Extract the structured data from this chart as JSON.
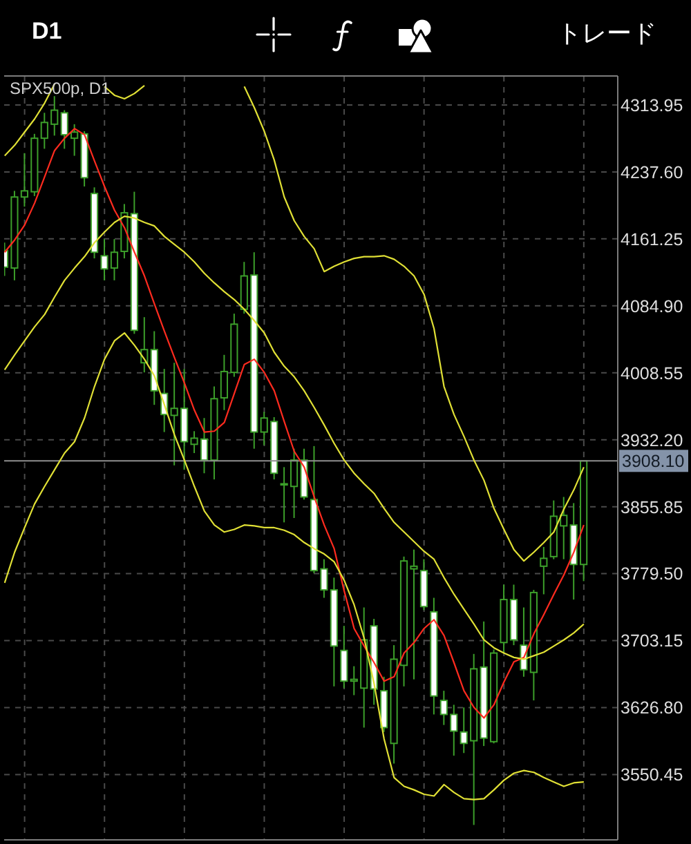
{
  "chart_data": {
    "type": "candlestick",
    "title": "SPX500p, D1",
    "annotations": [
      "D1",
      "トレード"
    ],
    "categories": [
      null,
      null,
      null,
      null,
      null,
      null,
      null,
      null,
      null,
      null,
      null,
      null,
      null,
      null,
      null,
      null,
      null,
      null,
      null,
      null,
      null,
      null,
      null,
      null,
      null,
      null,
      null,
      null,
      null,
      null,
      null,
      null,
      null,
      null,
      null,
      null,
      null,
      null,
      null,
      null,
      null,
      null,
      null,
      null,
      null,
      null,
      null,
      null,
      null,
      null,
      null,
      null,
      null,
      null,
      null,
      null,
      null,
      null,
      null
    ],
    "ohlc": [
      [
        4148,
        4157,
        4119,
        4129
      ],
      [
        4128,
        4216,
        4114,
        4209
      ],
      [
        4209,
        4259,
        4198,
        4216
      ],
      [
        4215,
        4281,
        4210,
        4276
      ],
      [
        4276,
        4305,
        4264,
        4294
      ],
      [
        4292,
        4324,
        4279,
        4308
      ],
      [
        4305,
        4308,
        4264,
        4280
      ],
      [
        4276,
        4292,
        4256,
        4283
      ],
      [
        4281,
        4284,
        4221,
        4231
      ],
      [
        4213,
        4220,
        4139,
        4146
      ],
      [
        4142,
        4161,
        4114,
        4127
      ],
      [
        4128,
        4161,
        4114,
        4146
      ],
      [
        4147,
        4201,
        4139,
        4191
      ],
      [
        4190,
        4215,
        4053,
        4057
      ],
      [
        4020,
        4072,
        4009,
        4035
      ],
      [
        4035,
        4056,
        3972,
        3988
      ],
      [
        3985,
        4013,
        3941,
        3961
      ],
      [
        3960,
        4020,
        3903,
        3968
      ],
      [
        3968,
        4013,
        3898,
        3930
      ],
      [
        3927,
        3942,
        3917,
        3934
      ],
      [
        3933,
        3957,
        3894,
        3909
      ],
      [
        3909,
        3993,
        3887,
        3979
      ],
      [
        3980,
        4029,
        3966,
        4010
      ],
      [
        4009,
        4076,
        4004,
        4064
      ],
      [
        4081,
        4135,
        4076,
        4119
      ],
      [
        4120,
        4146,
        3922,
        3941
      ],
      [
        3941,
        3964,
        3926,
        3957
      ],
      [
        3953,
        3958,
        3887,
        3894
      ],
      [
        3881,
        3901,
        3838,
        3882
      ],
      [
        3879,
        3922,
        3843,
        3909
      ],
      [
        3909,
        3922,
        3864,
        3867
      ],
      [
        3864,
        3925,
        3780,
        3783
      ],
      [
        3785,
        3796,
        3752,
        3761
      ],
      [
        3761,
        3775,
        3651,
        3697
      ],
      [
        3692,
        3720,
        3649,
        3657
      ],
      [
        3657,
        3674,
        3641,
        3659
      ],
      [
        3649,
        3741,
        3604,
        3704
      ],
      [
        3720,
        3728,
        3630,
        3648
      ],
      [
        3646,
        3662,
        3599,
        3604
      ],
      [
        3586,
        3698,
        3563,
        3682
      ],
      [
        3675,
        3799,
        3651,
        3794
      ],
      [
        3785,
        3807,
        3659,
        3788
      ],
      [
        3783,
        3796,
        3738,
        3742
      ],
      [
        3736,
        3752,
        3619,
        3640
      ],
      [
        3635,
        3646,
        3607,
        3619
      ],
      [
        3619,
        3630,
        3572,
        3600
      ],
      [
        3599,
        3627,
        3575,
        3586
      ],
      [
        3589,
        3688,
        3493,
        3671
      ],
      [
        3673,
        3725,
        3583,
        3592
      ],
      [
        3588,
        3693,
        3586,
        3689
      ],
      [
        3701,
        3767,
        3689,
        3750
      ],
      [
        3750,
        3767,
        3698,
        3704
      ],
      [
        3698,
        3741,
        3662,
        3670
      ],
      [
        3667,
        3761,
        3635,
        3758
      ],
      [
        3788,
        3810,
        3756,
        3797
      ],
      [
        3799,
        3863,
        3796,
        3845
      ],
      [
        3834,
        3867,
        3796,
        3846
      ],
      [
        3835,
        3860,
        3750,
        3790
      ],
      [
        3790,
        3908.1,
        3771,
        3908.1
      ]
    ],
    "color": "#3c9f2a",
    "colors": [
      "#ffffff",
      "#000000",
      "#000000",
      "#000000",
      "#000000",
      "#000000",
      "#ffffff",
      "#000000",
      "#ffffff",
      "#ffffff",
      "#ffffff",
      "#000000",
      "#000000",
      "#ffffff",
      "#000000",
      "#ffffff",
      "#ffffff",
      "#000000",
      "#ffffff",
      "#000000",
      "#ffffff",
      "#000000",
      "#000000",
      "#000000",
      "#000000",
      "#ffffff",
      "#000000",
      "#ffffff",
      "#000000",
      "#000000",
      "#ffffff",
      "#ffffff",
      "#ffffff",
      "#ffffff",
      "#ffffff",
      "#000000",
      "#000000",
      "#ffffff",
      "#ffffff",
      "#000000",
      "#000000",
      "#000000",
      "#ffffff",
      "#ffffff",
      "#ffffff",
      "#ffffff",
      "#ffffff",
      "#000000",
      "#ffffff",
      "#000000",
      "#000000",
      "#ffffff",
      "#ffffff",
      "#000000",
      "#000000",
      "#000000",
      "#000000",
      "#ffffff",
      "#000000"
    ],
    "series": [
      {
        "type": "line",
        "color": "#ff2b1f",
        "values": [
          4146,
          4160,
          4177,
          4202,
          4232,
          4262,
          4276,
          4287,
          4280,
          4250,
          4221,
          4194,
          4174,
          4146,
          4119,
          4087,
          4056,
          4026,
          3997,
          3966,
          3941,
          3942,
          3952,
          3985,
          4018,
          4024,
          4009,
          3988,
          3953,
          3919,
          3901,
          3867,
          3835,
          3808,
          3760,
          3717,
          3697,
          3678,
          3657,
          3662,
          3689,
          3701,
          3717,
          3727,
          3709,
          3678,
          3646,
          3627,
          3615,
          3630,
          3656,
          3679,
          3684,
          3711,
          3733,
          3756,
          3778,
          3804,
          3835
        ]
      },
      {
        "type": "line",
        "color": "#e0e035",
        "values": [
          4256,
          4268,
          4283,
          4298,
          4316,
          4338,
          null,
          null,
          null,
          null,
          4335,
          4325,
          4321,
          4327,
          4336,
          null,
          null,
          null,
          null,
          null,
          null,
          null,
          null,
          null,
          4335,
          4311,
          4284,
          4251,
          4209,
          4182,
          4164,
          4150,
          4124,
          4130,
          4135,
          4139,
          4141,
          4141,
          4142,
          4138,
          4130,
          4119,
          4098,
          4059,
          3993,
          3961,
          3936,
          3909,
          3886,
          3854,
          3830,
          3807,
          3794,
          3804,
          3815,
          3827,
          3853,
          3875,
          3901
        ]
      },
      {
        "type": "line",
        "color": "#e0e035",
        "values": [
          4012,
          4029,
          4045,
          4061,
          4075,
          4095,
          4114,
          4128,
          4141,
          4157,
          4169,
          4180,
          4187,
          4185,
          4180,
          4176,
          4164,
          4155,
          4146,
          4135,
          4122,
          4111,
          4101,
          4092,
          4081,
          4068,
          4054,
          4032,
          4016,
          4004,
          3988,
          3969,
          3949,
          3928,
          3909,
          3894,
          3882,
          3871,
          3854,
          3838,
          3827,
          3816,
          3805,
          3796,
          3775,
          3756,
          3739,
          3722,
          3704,
          3695,
          3689,
          3684,
          3682,
          3686,
          3690,
          3697,
          3704,
          3712,
          3722
        ]
      },
      {
        "type": "line",
        "color": "#e0e035",
        "values": [
          3769,
          3804,
          3832,
          3859,
          3879,
          3898,
          3917,
          3930,
          3957,
          3993,
          4024,
          4045,
          4054,
          4040,
          4024,
          4005,
          3972,
          3938,
          3909,
          3879,
          3851,
          3835,
          3827,
          3830,
          3835,
          3834,
          3832,
          3832,
          3829,
          3824,
          3815,
          3808,
          3802,
          3793,
          3772,
          3744,
          3706,
          3654,
          3591,
          3547,
          3537,
          3533,
          3528,
          3526,
          3539,
          3530,
          3523,
          3522,
          3523,
          3533,
          3544,
          3552,
          3555,
          3553,
          3547,
          3542,
          3537,
          3541,
          3542
        ]
      }
    ],
    "ylim": [
      3476,
      4347
    ],
    "yticks": [
      4313.95,
      {
        "value": 4237.6,
        "label": "4237.60"
      },
      4161.25,
      {
        "value": 4084.9,
        "label": "4084.90"
      },
      4008.55,
      {
        "value": 3932.2,
        "label": "3932.20"
      },
      3855.85,
      {
        "value": 3779.5,
        "label": "3779.50"
      },
      3703.15,
      {
        "value": 3626.8,
        "label": "3626.80"
      },
      3550.45
    ],
    "ref_lines": [
      {
        "axis": "y",
        "value": 3908.1,
        "label": "3908.10",
        "color": "#8f8f8f"
      }
    ],
    "grid": true
  }
}
